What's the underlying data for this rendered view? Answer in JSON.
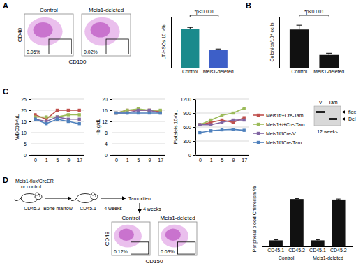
{
  "panel_letters": [
    "A",
    "B",
    "C",
    "D"
  ],
  "gel": {
    "lanes": [
      "V",
      "Tam"
    ],
    "bands": [
      "flox",
      "Del"
    ],
    "caption": "12 weeks"
  },
  "diagram": {
    "donor": "Meis1-flox/CreER",
    "donor_note": "or control",
    "donor_strain": "CD45.2",
    "transfer": "Bone marrow",
    "recipient_strain": "CD45.1",
    "wait1": "4 weeks",
    "treatment": "Tamoxifen",
    "wait2": "4 weeks"
  },
  "chart_data": [
    {
      "type": "flow",
      "x_label": "CD150",
      "y_label": "CD48",
      "plots": [
        {
          "title": "Control",
          "gate_label": "0.05%"
        },
        {
          "title": "Meis1-deleted",
          "gate_label": "0.02%"
        }
      ]
    },
    {
      "type": "bar",
      "y_label": "LT-HSCs 10⁻²%",
      "categories": [
        "Control",
        "Meis1-deleted"
      ],
      "values": [
        4.6,
        2.1
      ],
      "errors": [
        0.15,
        0.1
      ],
      "colors": [
        "#1b8a8c",
        "#3d5fc8"
      ],
      "ylim": [
        0,
        6
      ],
      "tick_labels": "x",
      "annotation": "*p<0.001"
    },
    {
      "type": "bar",
      "y_label": "Colonies/10⁴ cells",
      "categories": [
        "Control",
        "Meis1-deleted"
      ],
      "values": [
        225,
        75
      ],
      "errors": [
        25,
        10
      ],
      "color": "#111111",
      "ylim": [
        0,
        300
      ],
      "tick_labels": "x",
      "annotation": "*p<0.001"
    },
    {
      "type": "line",
      "y_label": "WBC10³/uL",
      "categories": [
        "0",
        "1",
        "5",
        "9",
        "17"
      ],
      "ylim": [
        0,
        25
      ],
      "yticks": [
        0,
        5,
        10,
        15,
        20,
        25
      ],
      "grid": true,
      "legend": "right",
      "marker": "square",
      "series": [
        {
          "name": "Meis1f/+Cre-Tam",
          "color": "#c0504d",
          "values": [
            18,
            16,
            20,
            20,
            20
          ]
        },
        {
          "name": "Meis1+/+Cre-Tam",
          "color": "#9bbb59",
          "values": [
            17,
            17,
            17,
            18,
            18
          ]
        },
        {
          "name": "Meis1f/fCre-V",
          "color": "#8064a2",
          "values": [
            16,
            15,
            17,
            16,
            16
          ]
        },
        {
          "name": "Meis1f/fCre-Tam",
          "color": "#4f81bd",
          "values": [
            16,
            14,
            16,
            15,
            14
          ]
        }
      ]
    },
    {
      "type": "line",
      "y_label": "Hb g/dL",
      "categories": [
        "0",
        "1",
        "5",
        "9",
        "17"
      ],
      "ylim": [
        0,
        20
      ],
      "yticks": [
        0,
        4,
        8,
        12,
        16,
        20
      ],
      "grid": true,
      "marker": "square",
      "series": [
        {
          "color": "#c0504d",
          "values": [
            15,
            16,
            16,
            16,
            15.5
          ]
        },
        {
          "color": "#9bbb59",
          "values": [
            15,
            16,
            16.5,
            16,
            16
          ]
        },
        {
          "color": "#8064a2",
          "values": [
            15,
            15,
            16,
            16,
            15
          ]
        },
        {
          "color": "#4f81bd",
          "values": [
            15,
            15,
            15,
            15,
            15
          ]
        }
      ]
    },
    {
      "type": "line",
      "y_label": "Platelets 10³/uL",
      "categories": [
        "0",
        "1",
        "5",
        "9",
        "17"
      ],
      "ylim": [
        0,
        1200
      ],
      "yticks": [
        0,
        300,
        600,
        900,
        1200
      ],
      "grid": true,
      "marker": "square",
      "series": [
        {
          "color": "#c0504d",
          "values": [
            650,
            700,
            750,
            700,
            800
          ]
        },
        {
          "color": "#9bbb59",
          "values": [
            650,
            750,
            850,
            900,
            1000
          ]
        },
        {
          "color": "#8064a2",
          "values": [
            650,
            650,
            700,
            750,
            750
          ]
        },
        {
          "color": "#4f81bd",
          "values": [
            480,
            520,
            540,
            550,
            530
          ]
        }
      ]
    },
    {
      "type": "flow",
      "x_label": "CD150",
      "y_label": "CD48",
      "plots": [
        {
          "title": "Control",
          "gate_label": "0.12%"
        },
        {
          "title": "Meis1-deleted",
          "gate_label": "0.03%"
        }
      ]
    },
    {
      "type": "bar",
      "y_label": "Peripheral blood Chimerism %",
      "categories": [
        "CD45.1",
        "CD45.2",
        "CD45.1",
        "CD45.2"
      ],
      "groups": [
        "Control",
        "Meis1-deleted"
      ],
      "values": [
        11,
        87,
        11,
        86
      ],
      "errors": [
        1,
        1,
        1,
        1
      ],
      "color": "#111111",
      "ylim": [
        0,
        100
      ],
      "tick_labels": "x"
    }
  ]
}
